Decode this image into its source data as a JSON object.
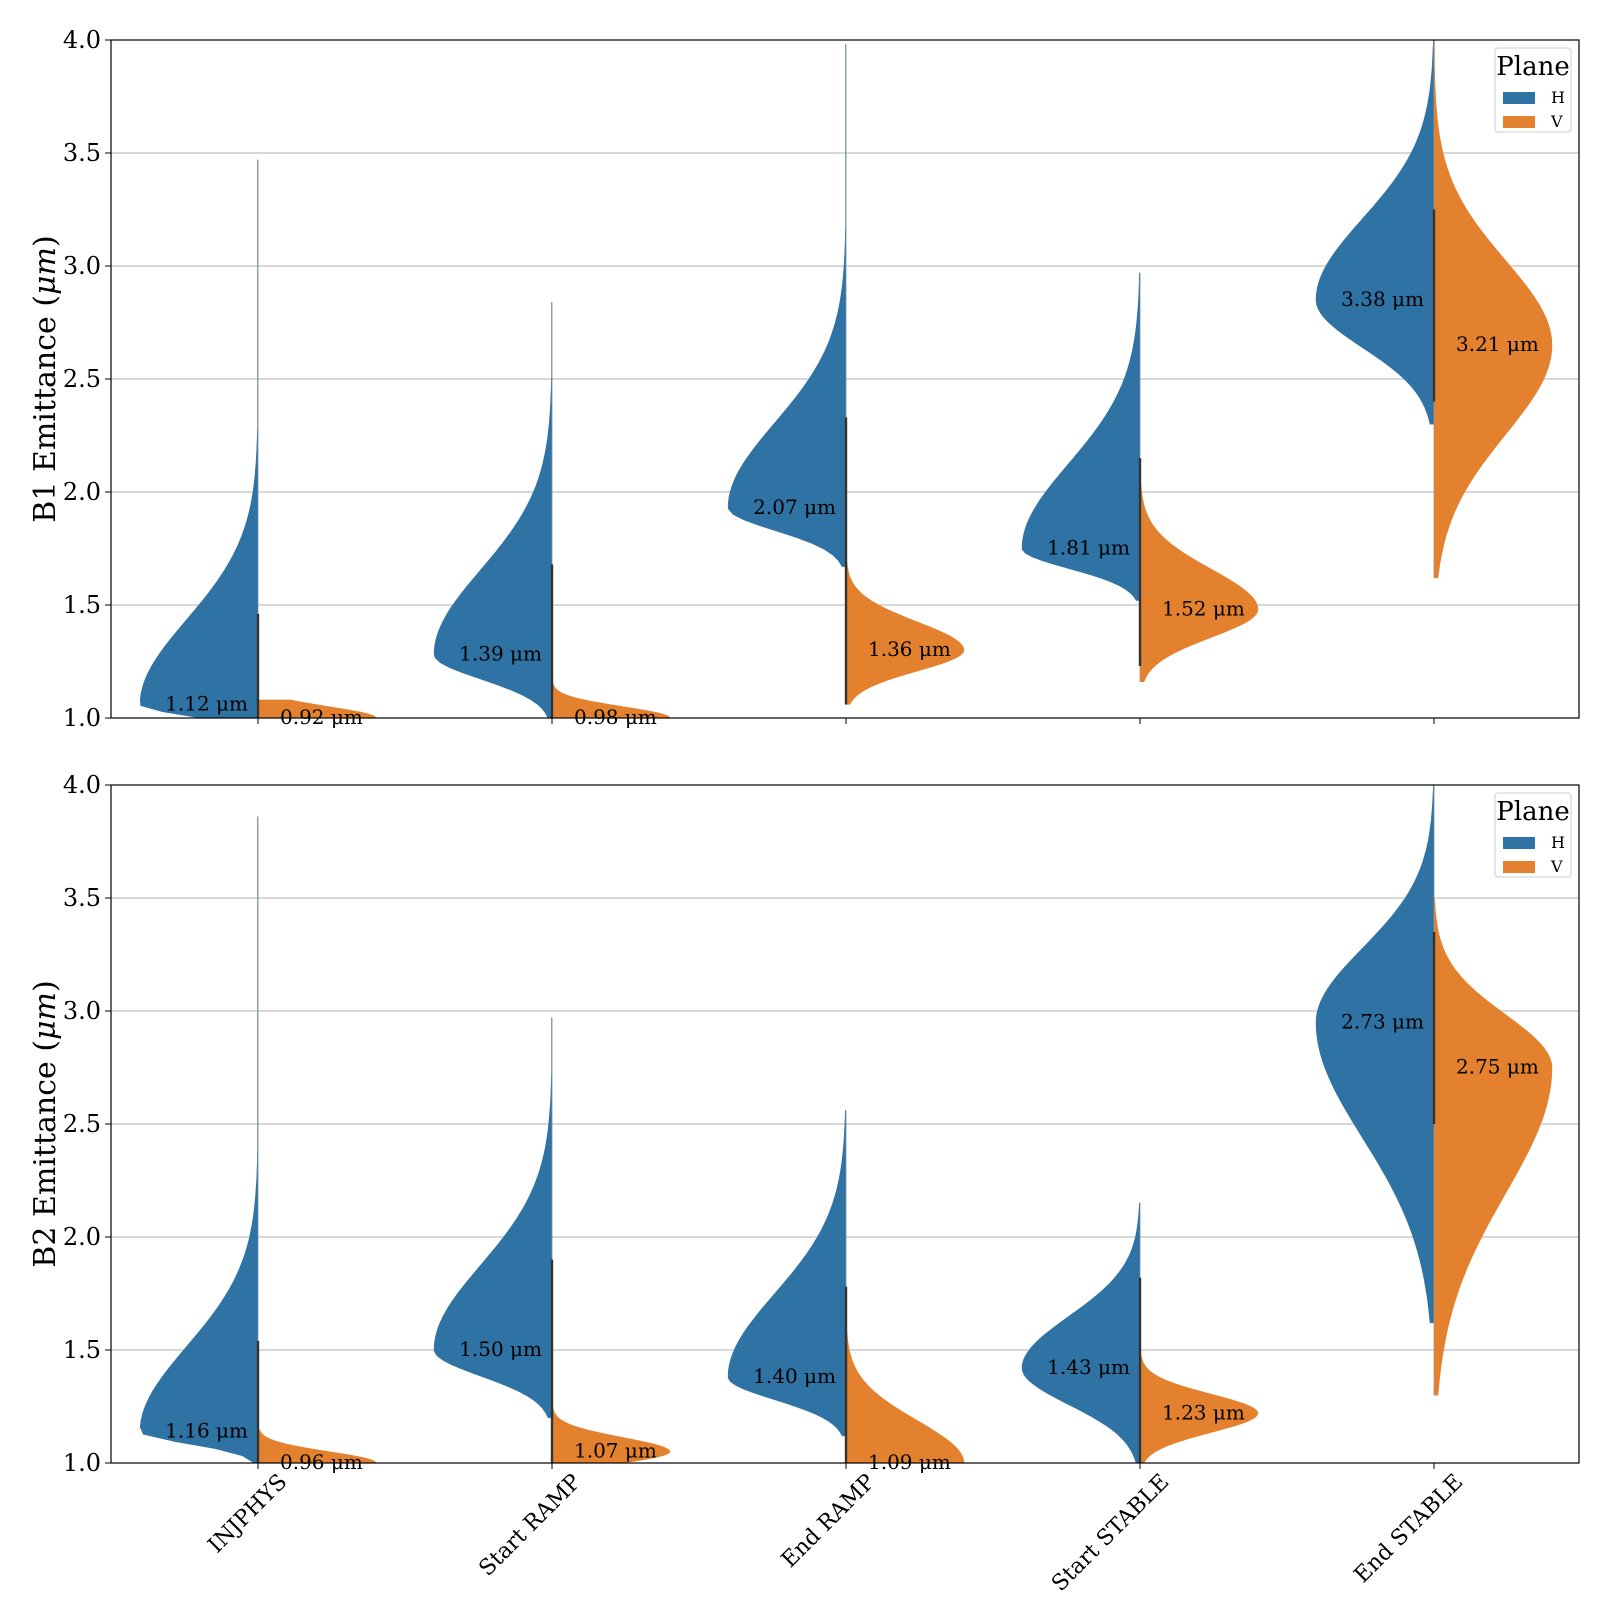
{
  "colors": {
    "H": "#2f72a4",
    "V": "#e3812f",
    "grid": "#b0b0b0",
    "median_line": "#333333"
  },
  "chart_data": [
    {
      "type": "violin",
      "split": true,
      "ylabel": "B1 Emittance ($\\mu m$)",
      "ylim": [
        1.0,
        4.0
      ],
      "yticks": [
        "1.0",
        "1.5",
        "2.0",
        "2.5",
        "3.0",
        "3.5",
        "4.0"
      ],
      "grid": true,
      "legend": {
        "title": "Plane",
        "placement": "top-right",
        "entries": [
          "H",
          "V"
        ]
      },
      "categories": [
        "INJPHYS",
        "Start RAMP",
        "End RAMP",
        "Start STABLE",
        "End STABLE"
      ],
      "series": [
        {
          "name": "H",
          "peaks": [
            1.06,
            1.28,
            1.93,
            1.75,
            2.85
          ],
          "mins": [
            1.0,
            1.0,
            1.67,
            1.52,
            2.3
          ],
          "maxs": [
            3.47,
            2.84,
            3.98,
            2.97,
            4.0
          ],
          "labels": [
            "1.12 μm",
            "1.39 μm",
            "2.07 μm",
            "1.81 μm",
            "3.38 μm"
          ]
        },
        {
          "name": "V",
          "peaks": [
            1.0,
            1.0,
            1.3,
            1.48,
            2.65
          ],
          "mins": [
            1.0,
            1.0,
            1.06,
            1.16,
            1.62
          ],
          "maxs": [
            1.08,
            1.16,
            1.7,
            2.05,
            4.0
          ],
          "labels": [
            "0.92 μm",
            "0.98 μm",
            "1.36 μm",
            "1.52 μm",
            "3.21 μm"
          ]
        }
      ]
    },
    {
      "type": "violin",
      "split": true,
      "ylabel": "B2 Emittance ($\\mu m$)",
      "ylim": [
        1.0,
        4.0
      ],
      "yticks": [
        "1.0",
        "1.5",
        "2.0",
        "2.5",
        "3.0",
        "3.5",
        "4.0"
      ],
      "grid": true,
      "legend": {
        "title": "Plane",
        "placement": "top-right",
        "entries": [
          "H",
          "V"
        ]
      },
      "categories": [
        "INJPHYS",
        "Start RAMP",
        "End RAMP",
        "Start STABLE",
        "End STABLE"
      ],
      "series": [
        {
          "name": "H",
          "peaks": [
            1.14,
            1.5,
            1.38,
            1.42,
            2.95
          ],
          "mins": [
            1.0,
            1.2,
            1.12,
            1.0,
            1.62
          ],
          "maxs": [
            3.86,
            2.97,
            2.56,
            2.15,
            4.0
          ],
          "labels": [
            "1.16 μm",
            "1.50 μm",
            "1.40 μm",
            "1.43 μm",
            "2.73 μm"
          ]
        },
        {
          "name": "V",
          "peaks": [
            1.0,
            1.05,
            1.0,
            1.22,
            2.75
          ],
          "mins": [
            1.0,
            1.0,
            1.0,
            1.0,
            1.3
          ],
          "maxs": [
            1.15,
            1.25,
            1.6,
            1.49,
            3.5
          ],
          "labels": [
            "0.96 μm",
            "1.07 μm",
            "1.09 μm",
            "1.23 μm",
            "2.75 μm"
          ]
        }
      ]
    }
  ]
}
